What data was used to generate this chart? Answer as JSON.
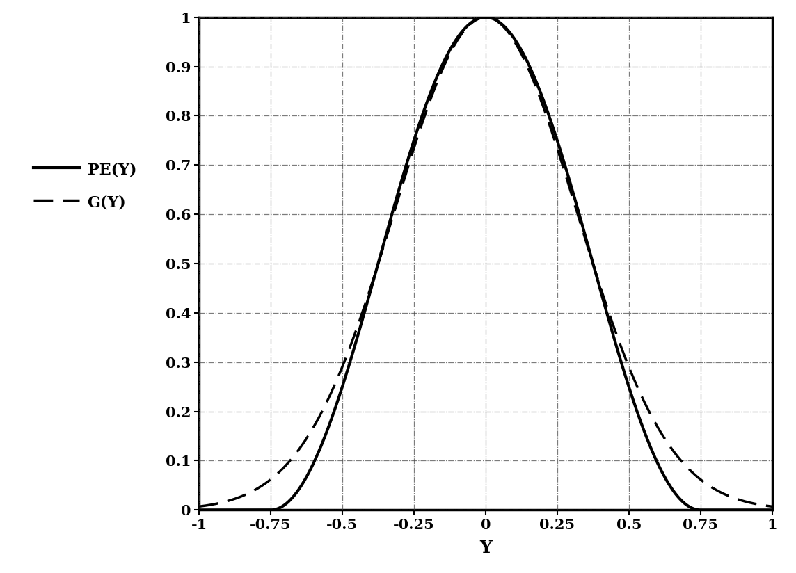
{
  "title": "",
  "xlabel": "Y",
  "ylabel": "",
  "xlim": [
    -1,
    1
  ],
  "ylim": [
    0,
    1
  ],
  "xticks": [
    -1,
    -0.75,
    -0.5,
    -0.25,
    0,
    0.25,
    0.5,
    0.75,
    1
  ],
  "yticks": [
    0,
    0.1,
    0.2,
    0.3,
    0.4,
    0.5,
    0.6,
    0.7,
    0.8,
    0.9,
    1.0
  ],
  "legend_labels": [
    "PE(Y)",
    "G(Y)"
  ],
  "solid_color": "#000000",
  "dash_color": "#000000",
  "background_color": "#ffffff",
  "sigma_gaussian": 0.318,
  "pe_cutoff": 0.75,
  "figsize": [
    11.44,
    8.24
  ],
  "dpi": 100
}
